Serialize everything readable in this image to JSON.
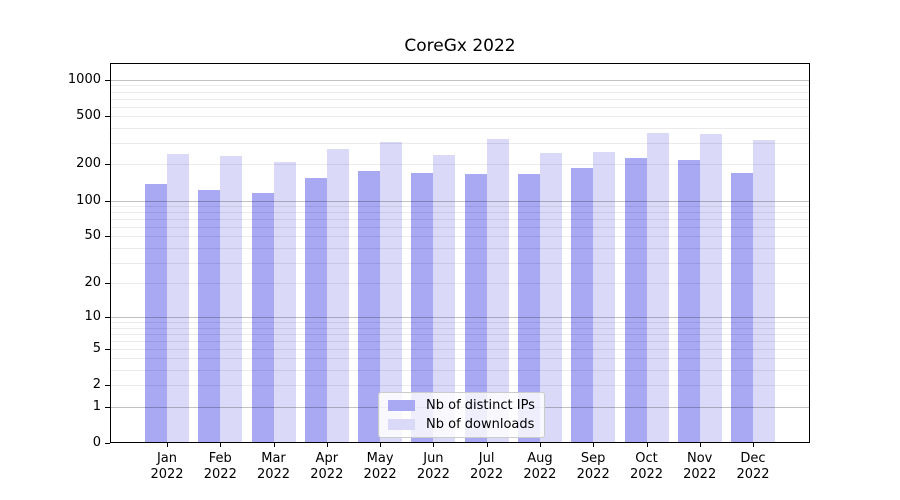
{
  "chart_data": {
    "type": "bar",
    "title": "CoreGx 2022",
    "categories": [
      {
        "label": "Jan",
        "sublabel": "2022"
      },
      {
        "label": "Feb",
        "sublabel": "2022"
      },
      {
        "label": "Mar",
        "sublabel": "2022"
      },
      {
        "label": "Apr",
        "sublabel": "2022"
      },
      {
        "label": "May",
        "sublabel": "2022"
      },
      {
        "label": "Jun",
        "sublabel": "2022"
      },
      {
        "label": "Jul",
        "sublabel": "2022"
      },
      {
        "label": "Aug",
        "sublabel": "2022"
      },
      {
        "label": "Sep",
        "sublabel": "2022"
      },
      {
        "label": "Oct",
        "sublabel": "2022"
      },
      {
        "label": "Nov",
        "sublabel": "2022"
      },
      {
        "label": "Dec",
        "sublabel": "2022"
      }
    ],
    "series": [
      {
        "name": "Nb of distinct IPs",
        "color": "#a8a8f3",
        "values": [
          138,
          123,
          116,
          155,
          176,
          168,
          166,
          166,
          185,
          226,
          219,
          170
        ]
      },
      {
        "name": "Nb of downloads",
        "color": "#dadaf8",
        "values": [
          245,
          235,
          210,
          269,
          305,
          240,
          327,
          247,
          254,
          365,
          360,
          320
        ]
      }
    ],
    "xlabel": "",
    "ylabel": "",
    "yscale": "log1p",
    "yticks": [
      0,
      1,
      2,
      5,
      10,
      20,
      50,
      100,
      200,
      500,
      1000
    ],
    "ylim": [
      0,
      1380
    ],
    "grid": true,
    "grid_major_at": [
      1,
      10,
      100,
      1000
    ],
    "grid_major_color": "#c3c3c3",
    "grid_minor_color": "#ececec",
    "legend_position": "lower center",
    "background_color": "#ffffff",
    "spine_color": "#000000"
  }
}
